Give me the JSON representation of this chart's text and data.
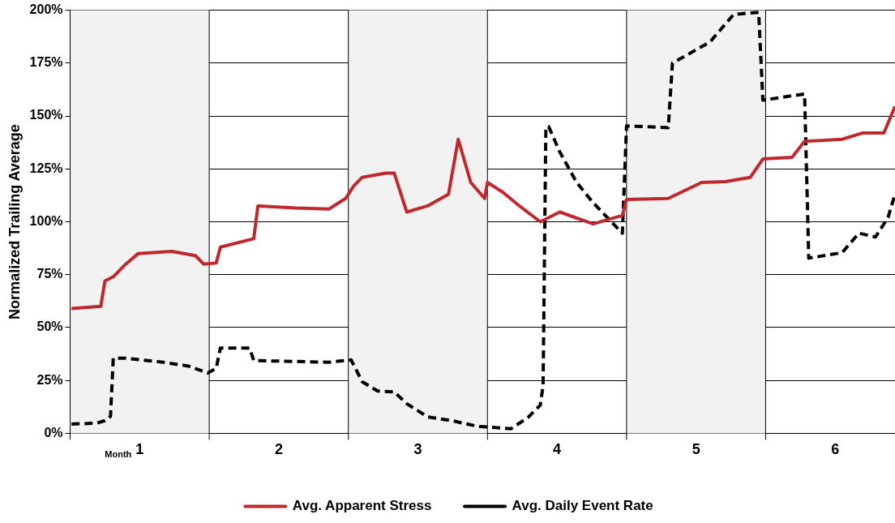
{
  "chart_data": {
    "type": "line",
    "ylabel": "Normalized Trailing Average",
    "xlim": [
      0,
      5.93
    ],
    "ylim": [
      0,
      200
    ],
    "xticks": [
      {
        "value": 0.5,
        "label": "1"
      },
      {
        "value": 1.5,
        "label": "2"
      },
      {
        "value": 2.5,
        "label": "3"
      },
      {
        "value": 3.5,
        "label": "4"
      },
      {
        "value": 4.5,
        "label": "5"
      },
      {
        "value": 5.5,
        "label": "6"
      }
    ],
    "yticks": [
      {
        "value": 0,
        "label": "0%"
      },
      {
        "value": 25,
        "label": "25%"
      },
      {
        "value": 50,
        "label": "50%"
      },
      {
        "value": 75,
        "label": "75%"
      },
      {
        "value": 100,
        "label": "100%"
      },
      {
        "value": 125,
        "label": "125%"
      },
      {
        "value": 150,
        "label": "150%"
      },
      {
        "value": 175,
        "label": "175%"
      },
      {
        "value": 200,
        "label": "200%"
      }
    ],
    "annotations": [
      "Month"
    ],
    "bands": [
      {
        "axis": "x",
        "from": 0,
        "to": 1,
        "color": "#f2f2f2"
      },
      {
        "axis": "x",
        "from": 2,
        "to": 3,
        "color": "#f2f2f2"
      },
      {
        "axis": "x",
        "from": 4,
        "to": 5,
        "color": "#f2f2f2"
      }
    ],
    "grid": "y",
    "legend": "bottom",
    "marker": "none",
    "series": [
      {
        "name": "Avg. Apparent Stress",
        "color": "#c0282d",
        "line_style": "solid",
        "x": [
          0.01,
          0.22,
          0.25,
          0.31,
          0.4,
          0.49,
          0.73,
          0.9,
          0.96,
          1.05,
          1.08,
          1.32,
          1.35,
          1.62,
          1.86,
          1.98,
          2.04,
          2.1,
          2.27,
          2.33,
          2.42,
          2.57,
          2.72,
          2.79,
          2.88,
          2.98,
          3.0,
          3.11,
          3.23,
          3.38,
          3.52,
          3.76,
          3.97,
          4.0,
          4.3,
          4.54,
          4.71,
          4.89,
          4.98,
          5.19,
          5.28,
          5.55,
          5.7,
          5.85,
          5.93
        ],
        "values": [
          59,
          60,
          72,
          74,
          80,
          85,
          86,
          84,
          80,
          80.5,
          88,
          92,
          107.5,
          106.5,
          106,
          111,
          117,
          121,
          123,
          123,
          104.6,
          107.5,
          113,
          139,
          118.6,
          111,
          118.6,
          114,
          107.5,
          100,
          104.6,
          99,
          103,
          110.5,
          111,
          118.6,
          119,
          121,
          129.7,
          130.5,
          138,
          139,
          142,
          142,
          154.5
        ]
      },
      {
        "name": "Avg. Daily Event Rate",
        "color": "#000000",
        "line_style": "dashed",
        "x": [
          0.01,
          0.19,
          0.25,
          0.29,
          0.31,
          0.4,
          0.67,
          0.85,
          0.99,
          1.05,
          1.08,
          1.29,
          1.32,
          1.86,
          2.02,
          2.1,
          2.21,
          2.33,
          2.42,
          2.57,
          2.75,
          2.93,
          3.17,
          3.29,
          3.38,
          3.4,
          3.42,
          3.44,
          3.52,
          3.64,
          3.76,
          3.97,
          4.0,
          4.3,
          4.33,
          4.6,
          4.77,
          4.95,
          4.98,
          5.28,
          5.31,
          5.55,
          5.67,
          5.79,
          5.88,
          5.93
        ],
        "values": [
          4.4,
          4.8,
          6,
          8,
          35.5,
          35.5,
          33.6,
          31.8,
          28.5,
          30.7,
          40.3,
          40.3,
          34.4,
          33.6,
          34.7,
          24.4,
          20,
          19.6,
          14,
          7.8,
          5.9,
          3.3,
          2.2,
          7.4,
          13.3,
          22.6,
          144.5,
          145,
          133,
          118.7,
          109,
          94.6,
          145.3,
          144.5,
          175,
          185,
          198,
          199,
          157.5,
          160.4,
          82.8,
          85.4,
          94.6,
          92.8,
          102,
          113
        ]
      }
    ]
  }
}
